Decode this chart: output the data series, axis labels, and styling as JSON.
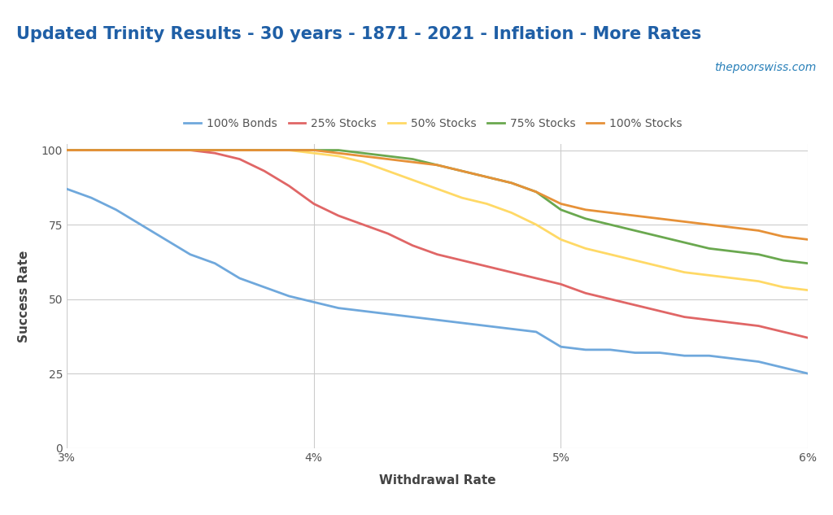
{
  "title": "Updated Trinity Results - 30 years - 1871 - 2021 - Inflation - More Rates",
  "watermark": "thepoorswiss.com",
  "xlabel": "Withdrawal Rate",
  "ylabel": "Success Rate",
  "title_color": "#1f5fa6",
  "watermark_color": "#2980b9",
  "background_color": "#ffffff",
  "plot_bg_color": "#ffffff",
  "grid_color": "#cccccc",
  "x_values": [
    3.0,
    3.1,
    3.2,
    3.3,
    3.4,
    3.5,
    3.6,
    3.7,
    3.8,
    3.9,
    4.0,
    4.1,
    4.2,
    4.3,
    4.4,
    4.5,
    4.6,
    4.7,
    4.8,
    4.9,
    5.0,
    5.1,
    5.2,
    5.3,
    5.4,
    5.5,
    5.6,
    5.7,
    5.8,
    5.9,
    6.0
  ],
  "series": [
    {
      "label": "100% Bonds",
      "color": "#6fa8dc",
      "values": [
        87,
        84,
        80,
        75,
        70,
        65,
        62,
        57,
        54,
        51,
        49,
        47,
        46,
        45,
        44,
        43,
        42,
        41,
        40,
        39,
        34,
        33,
        33,
        32,
        32,
        31,
        31,
        30,
        29,
        27,
        25
      ]
    },
    {
      "label": "25% Stocks",
      "color": "#e06666",
      "values": [
        100,
        100,
        100,
        100,
        100,
        100,
        99,
        97,
        93,
        88,
        82,
        78,
        75,
        72,
        68,
        65,
        63,
        61,
        59,
        57,
        55,
        52,
        50,
        48,
        46,
        44,
        43,
        42,
        41,
        39,
        37
      ]
    },
    {
      "label": "50% Stocks",
      "color": "#ffd966",
      "values": [
        100,
        100,
        100,
        100,
        100,
        100,
        100,
        100,
        100,
        100,
        99,
        98,
        96,
        93,
        90,
        87,
        84,
        82,
        79,
        75,
        70,
        67,
        65,
        63,
        61,
        59,
        58,
        57,
        56,
        54,
        53
      ]
    },
    {
      "label": "75% Stocks",
      "color": "#6aa84f",
      "values": [
        100,
        100,
        100,
        100,
        100,
        100,
        100,
        100,
        100,
        100,
        100,
        100,
        99,
        98,
        97,
        95,
        93,
        91,
        89,
        86,
        80,
        77,
        75,
        73,
        71,
        69,
        67,
        66,
        65,
        63,
        62
      ]
    },
    {
      "label": "100% Stocks",
      "color": "#e69138",
      "values": [
        100,
        100,
        100,
        100,
        100,
        100,
        100,
        100,
        100,
        100,
        100,
        99,
        98,
        97,
        96,
        95,
        93,
        91,
        89,
        86,
        82,
        80,
        79,
        78,
        77,
        76,
        75,
        74,
        73,
        71,
        70
      ]
    }
  ],
  "ylim": [
    0,
    102
  ],
  "yticks": [
    0,
    25,
    50,
    75,
    100
  ],
  "xlim": [
    3.0,
    6.0
  ],
  "xtick_positions": [
    3.0,
    4.0,
    5.0,
    6.0
  ],
  "xtick_labels": [
    "3%",
    "4%",
    "5%",
    "6%"
  ],
  "title_fontsize": 15,
  "label_fontsize": 11,
  "tick_fontsize": 10,
  "legend_fontsize": 10,
  "watermark_fontsize": 10,
  "line_width": 2.0
}
